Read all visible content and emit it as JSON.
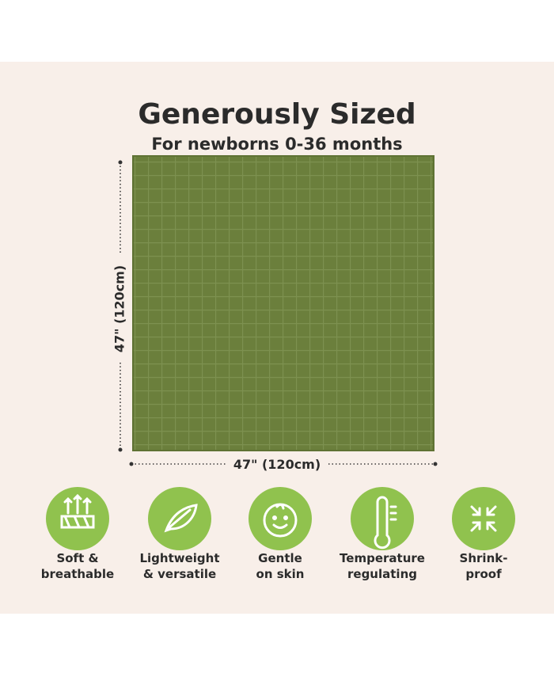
{
  "header": {
    "title": "Generously Sized",
    "subtitle": "For newborns 0-36 months"
  },
  "dimensions": {
    "height": "47\" (120cm)",
    "width": "47\" (120cm)"
  },
  "features": [
    {
      "lines": [
        "Soft &",
        "breathable"
      ]
    },
    {
      "lines": [
        "Lightweight",
        "& versatile"
      ]
    },
    {
      "lines": [
        "Gentle",
        "on skin"
      ]
    },
    {
      "lines": [
        "Temperature",
        "regulating"
      ]
    },
    {
      "lines": [
        "Shrink-",
        "proof"
      ]
    }
  ]
}
